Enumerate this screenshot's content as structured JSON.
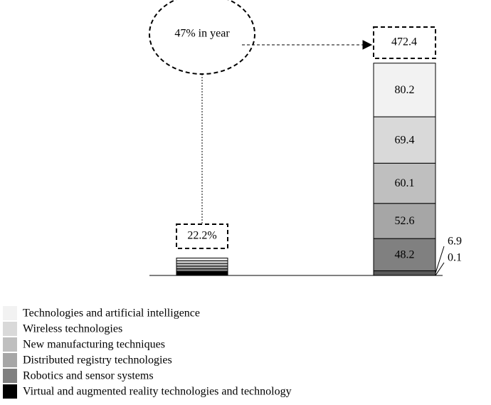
{
  "chart_data": {
    "type": "bar",
    "stacked": true,
    "categories": [
      null,
      null
    ],
    "series": [
      {
        "name": "Technologies and artificial intelligence",
        "color": "#f2f2f2",
        "values": [
          4,
          80.2
        ]
      },
      {
        "name": "Wireless technologies",
        "color": "#d9d9d9",
        "values": [
          4,
          69.4
        ]
      },
      {
        "name": "New manufacturing techniques",
        "color": "#bfbfbf",
        "values": [
          4,
          60.1
        ]
      },
      {
        "name": "Distributed registry technologies",
        "color": "#a6a6a6",
        "values": [
          4,
          52.6
        ]
      },
      {
        "name": "Robotics and sensor systems",
        "color": "#808080",
        "values": [
          4,
          48.2
        ]
      },
      {
        "name": null,
        "color": "#595959",
        "values": [
          null,
          6.9
        ]
      },
      {
        "name": "Virtual and augmented reality technologies and technology",
        "color": "#000000",
        "values": [
          6,
          0.1
        ]
      }
    ],
    "ylim": [
      0,
      330
    ],
    "annotations": [
      "47% in year",
      "22.2%",
      "472.4"
    ]
  }
}
